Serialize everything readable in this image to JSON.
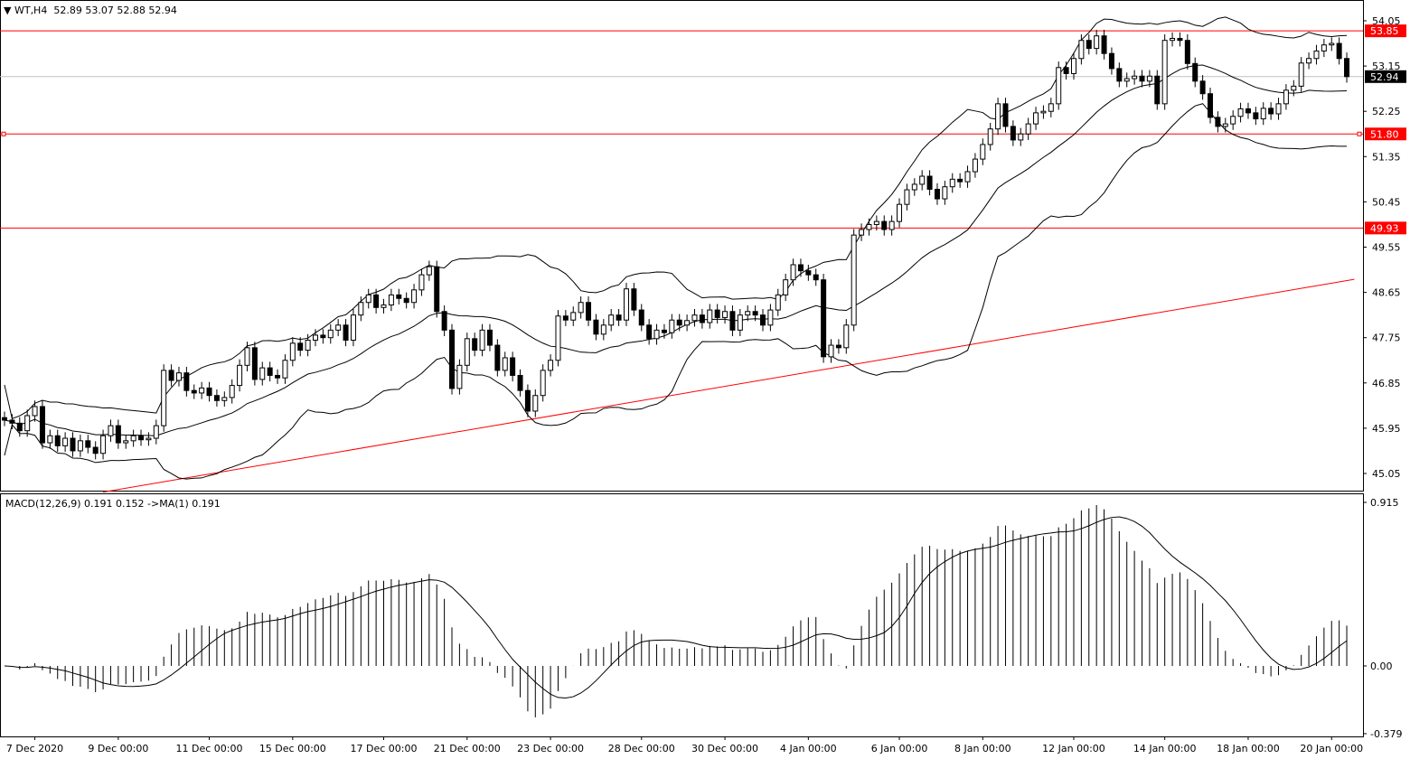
{
  "header": {
    "symbol": "WT,H4",
    "open": "52.89",
    "high": "53.07",
    "low": "52.88",
    "close": "52.94"
  },
  "colors": {
    "level_line": "#ff0000",
    "bid_line": "#c0c0c0",
    "bull_body": "#ffffff",
    "bear_body": "#000000",
    "outline": "#000000",
    "macd_hist": "#000000",
    "signal": "#000000",
    "axis_text": "#000000"
  },
  "chart_data": [
    {
      "type": "candlestick",
      "title": "WT,H4",
      "ylim": [
        44.88,
        54.3
      ],
      "y_ticks": [
        "54.05",
        "53.15",
        "52.25",
        "51.35",
        "50.45",
        "49.55",
        "48.65",
        "47.75",
        "46.85",
        "45.95",
        "45.05"
      ],
      "x_ticks": [
        {
          "label": "7 Dec 2020",
          "bar": 4
        },
        {
          "label": "9 Dec 00:00",
          "bar": 15
        },
        {
          "label": "11 Dec 00:00",
          "bar": 27
        },
        {
          "label": "15 Dec 00:00",
          "bar": 38
        },
        {
          "label": "17 Dec 00:00",
          "bar": 50
        },
        {
          "label": "21 Dec 00:00",
          "bar": 61
        },
        {
          "label": "23 Dec 00:00",
          "bar": 72
        },
        {
          "label": "28 Dec 00:00",
          "bar": 84
        },
        {
          "label": "30 Dec 00:00",
          "bar": 95
        },
        {
          "label": "4 Jan 00:00",
          "bar": 106
        },
        {
          "label": "6 Jan 00:00",
          "bar": 118
        },
        {
          "label": "8 Jan 00:00",
          "bar": 129
        },
        {
          "label": "12 Jan 00:00",
          "bar": 141
        },
        {
          "label": "14 Jan 00:00",
          "bar": 153
        },
        {
          "label": "18 Jan 00:00",
          "bar": 164
        },
        {
          "label": "20 Jan 00:00",
          "bar": 175
        }
      ],
      "closes": [
        46.11,
        46.05,
        45.9,
        46.2,
        46.38,
        45.66,
        45.8,
        45.6,
        45.75,
        45.5,
        45.7,
        45.57,
        45.45,
        45.8,
        46.0,
        45.66,
        45.7,
        45.8,
        45.72,
        45.75,
        46.0,
        47.1,
        46.9,
        47.05,
        46.7,
        46.65,
        46.75,
        46.6,
        46.5,
        46.56,
        46.8,
        47.2,
        47.55,
        46.92,
        47.15,
        47.0,
        46.95,
        47.3,
        47.64,
        47.5,
        47.7,
        47.8,
        47.75,
        47.9,
        48.0,
        47.7,
        48.2,
        48.45,
        48.6,
        48.35,
        48.4,
        48.6,
        48.53,
        48.45,
        48.7,
        49.0,
        49.16,
        48.27,
        47.9,
        46.74,
        47.2,
        47.73,
        47.5,
        47.9,
        47.6,
        47.1,
        47.35,
        47.0,
        46.7,
        46.29,
        46.6,
        47.1,
        47.3,
        48.18,
        48.1,
        48.25,
        48.45,
        48.1,
        47.82,
        48.0,
        48.2,
        48.1,
        48.72,
        48.3,
        48.0,
        47.73,
        47.9,
        47.85,
        48.1,
        48.0,
        48.09,
        48.2,
        48.05,
        48.3,
        48.15,
        48.27,
        47.9,
        48.2,
        48.27,
        48.2,
        48.0,
        48.3,
        48.6,
        48.9,
        49.2,
        49.08,
        49.0,
        48.9,
        47.37,
        47.6,
        47.55,
        48.0,
        49.79,
        49.9,
        50.0,
        50.06,
        49.9,
        50.06,
        50.4,
        50.69,
        50.8,
        50.96,
        50.7,
        50.51,
        50.75,
        50.9,
        50.85,
        51.05,
        51.3,
        51.59,
        51.9,
        52.4,
        51.95,
        51.68,
        51.8,
        52.0,
        52.22,
        52.25,
        52.4,
        53.12,
        53.0,
        53.3,
        53.66,
        53.5,
        53.75,
        53.4,
        53.1,
        52.85,
        52.9,
        52.95,
        52.85,
        52.95,
        52.4,
        53.66,
        53.7,
        53.66,
        53.2,
        52.85,
        52.6,
        52.13,
        51.95,
        52.0,
        52.15,
        52.3,
        52.22,
        52.1,
        52.31,
        52.2,
        52.4,
        52.67,
        52.75,
        53.21,
        53.3,
        53.45,
        53.57,
        53.6,
        53.3,
        52.94
      ],
      "indicators": {
        "bollinger": {
          "period": 20,
          "deviation": 2
        }
      },
      "levels": [
        {
          "price": 53.85,
          "label": "53.85"
        },
        {
          "price": 51.8,
          "label": "51.80"
        },
        {
          "price": 49.93,
          "label": "49.93"
        }
      ],
      "bid": {
        "price": 52.94,
        "label": "52.94"
      },
      "trendline": {
        "from": {
          "bar": 13,
          "price": 44.68
        },
        "to": {
          "bar": 178,
          "price": 48.91
        }
      }
    },
    {
      "type": "bar",
      "title": "MACD(12,26,9) 0.191 0.152  ->MA(1) 0.191",
      "ylim": [
        -0.379,
        0.915
      ],
      "y_ticks": [
        "0.915",
        "0.00",
        "-0.379"
      ],
      "params": {
        "fast": 12,
        "slow": 26,
        "signal": 9
      }
    }
  ]
}
